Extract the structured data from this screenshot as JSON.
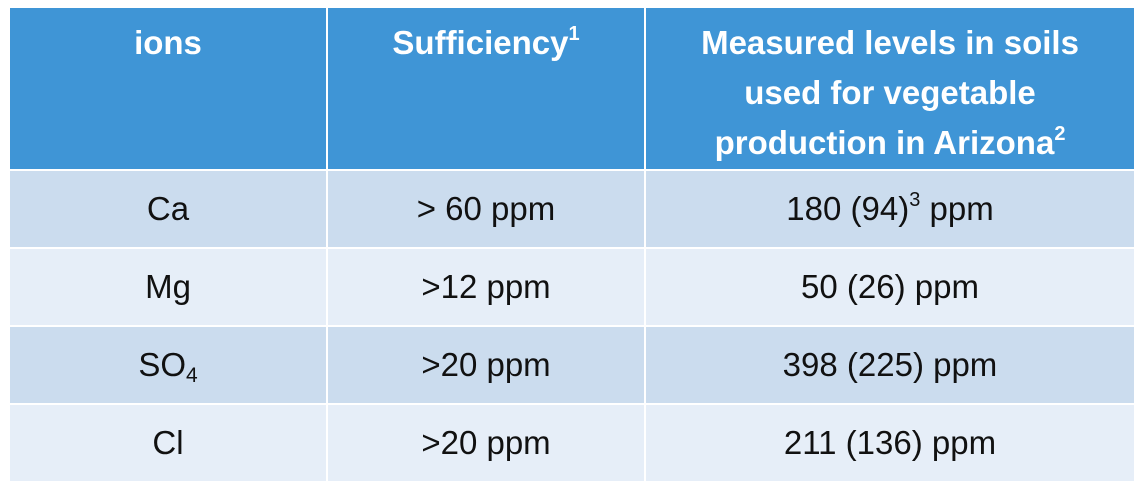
{
  "headers": {
    "ions": "ions",
    "sufficiency": "Sufficiency",
    "sufficiency_sup": "1",
    "measured_line1": "Measured levels in soils",
    "measured_line2": "used for vegetable",
    "measured_line3": "production in Arizona",
    "measured_sup": "2"
  },
  "rows": [
    {
      "ion": "Ca",
      "ion_sub": "",
      "sufficiency": "> 60 ppm",
      "measured": "180 (94)",
      "measured_sup": "3",
      "measured_unit": " ppm"
    },
    {
      "ion": "Mg",
      "ion_sub": "",
      "sufficiency": ">12 ppm",
      "measured": "50 (26) ppm",
      "measured_sup": "",
      "measured_unit": ""
    },
    {
      "ion": "SO",
      "ion_sub": "4",
      "sufficiency": ">20 ppm",
      "measured": "398 (225) ppm",
      "measured_sup": "",
      "measured_unit": ""
    },
    {
      "ion": "Cl",
      "ion_sub": "",
      "sufficiency": ">20 ppm",
      "measured": "211 (136) ppm",
      "measured_sup": "",
      "measured_unit": ""
    }
  ]
}
